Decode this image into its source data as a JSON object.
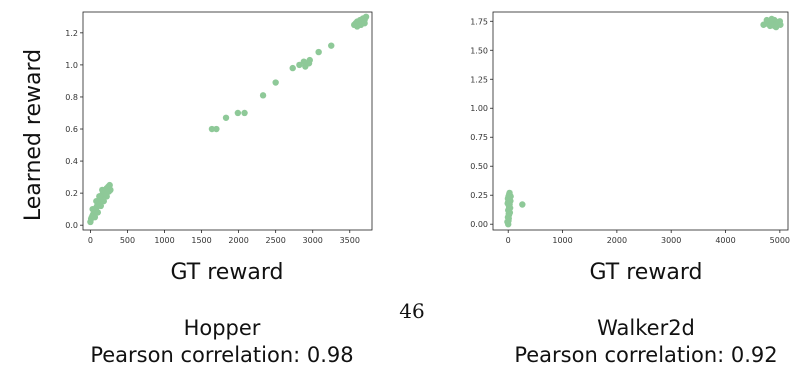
{
  "figure": {
    "shared_ylabel": "Learned reward",
    "page_number": "46"
  },
  "chart_data": [
    {
      "type": "scatter",
      "title": "",
      "xlabel": "GT reward",
      "ylabel": "Learned reward",
      "xlim": [
        -100,
        3800
      ],
      "ylim": [
        -0.03,
        1.33
      ],
      "xticks": [
        "0",
        "500",
        "1000",
        "1500",
        "2000",
        "2500",
        "3000",
        "3500"
      ],
      "yticks": [
        "0.0",
        "0.2",
        "0.4",
        "0.6",
        "0.8",
        "1.0",
        "1.2"
      ],
      "grid": false,
      "point_color": "#8ec998",
      "caption_env": "Hopper",
      "caption_corr": "Pearson correlation: 0.98",
      "points": [
        [
          0,
          0.02
        ],
        [
          10,
          0.04
        ],
        [
          20,
          0.05
        ],
        [
          30,
          0.06
        ],
        [
          40,
          0.07
        ],
        [
          50,
          0.08
        ],
        [
          60,
          0.09
        ],
        [
          70,
          0.1
        ],
        [
          80,
          0.11
        ],
        [
          90,
          0.12
        ],
        [
          100,
          0.13
        ],
        [
          110,
          0.14
        ],
        [
          120,
          0.15
        ],
        [
          130,
          0.16
        ],
        [
          140,
          0.17
        ],
        [
          150,
          0.18
        ],
        [
          160,
          0.19
        ],
        [
          170,
          0.2
        ],
        [
          180,
          0.21
        ],
        [
          200,
          0.22
        ],
        [
          220,
          0.23
        ],
        [
          240,
          0.24
        ],
        [
          260,
          0.25
        ],
        [
          270,
          0.22
        ],
        [
          60,
          0.05
        ],
        [
          100,
          0.08
        ],
        [
          140,
          0.12
        ],
        [
          180,
          0.15
        ],
        [
          220,
          0.18
        ],
        [
          30,
          0.1
        ],
        [
          80,
          0.15
        ],
        [
          120,
          0.18
        ],
        [
          160,
          0.22
        ],
        [
          200,
          0.2
        ],
        [
          250,
          0.21
        ],
        [
          1640,
          0.6
        ],
        [
          1700,
          0.6
        ],
        [
          1830,
          0.67
        ],
        [
          1990,
          0.7
        ],
        [
          2080,
          0.7
        ],
        [
          2330,
          0.81
        ],
        [
          2500,
          0.89
        ],
        [
          2730,
          0.98
        ],
        [
          2820,
          1.0
        ],
        [
          2880,
          1.02
        ],
        [
          2900,
          0.99
        ],
        [
          2950,
          1.01
        ],
        [
          2960,
          1.03
        ],
        [
          3080,
          1.08
        ],
        [
          3250,
          1.12
        ],
        [
          3560,
          1.25
        ],
        [
          3580,
          1.26
        ],
        [
          3600,
          1.27
        ],
        [
          3620,
          1.26
        ],
        [
          3640,
          1.28
        ],
        [
          3660,
          1.27
        ],
        [
          3680,
          1.29
        ],
        [
          3700,
          1.28
        ],
        [
          3720,
          1.3
        ],
        [
          3600,
          1.24
        ],
        [
          3650,
          1.25
        ],
        [
          3700,
          1.26
        ]
      ]
    },
    {
      "type": "scatter",
      "title": "",
      "xlabel": "GT reward",
      "ylabel": "",
      "xlim": [
        -280,
        5150
      ],
      "ylim": [
        -0.05,
        1.83
      ],
      "xticks": [
        "0",
        "1000",
        "2000",
        "3000",
        "4000",
        "5000"
      ],
      "yticks": [
        "0.00",
        "0.25",
        "0.50",
        "0.75",
        "1.00",
        "1.25",
        "1.50",
        "1.75"
      ],
      "grid": false,
      "point_color": "#8ec998",
      "caption_env": "Walker2d",
      "caption_corr": "Pearson correlation: 0.92",
      "points": [
        [
          0,
          0.0
        ],
        [
          5,
          0.03
        ],
        [
          -5,
          0.06
        ],
        [
          10,
          0.09
        ],
        [
          0,
          0.12
        ],
        [
          15,
          0.15
        ],
        [
          -10,
          0.18
        ],
        [
          20,
          0.21
        ],
        [
          5,
          0.24
        ],
        [
          25,
          0.27
        ],
        [
          40,
          0.2
        ],
        [
          30,
          0.1
        ],
        [
          -15,
          0.02
        ],
        [
          35,
          0.14
        ],
        [
          10,
          0.05
        ],
        [
          20,
          0.26
        ],
        [
          -5,
          0.22
        ],
        [
          15,
          0.08
        ],
        [
          25,
          0.17
        ],
        [
          45,
          0.24
        ],
        [
          0,
          0.19
        ],
        [
          260,
          0.17
        ],
        [
          4700,
          1.72
        ],
        [
          4750,
          1.73
        ],
        [
          4800,
          1.75
        ],
        [
          4850,
          1.74
        ],
        [
          4900,
          1.76
        ],
        [
          4950,
          1.73
        ],
        [
          5000,
          1.75
        ],
        [
          4820,
          1.71
        ],
        [
          4880,
          1.72
        ],
        [
          4930,
          1.7
        ],
        [
          4980,
          1.74
        ],
        [
          4760,
          1.76
        ],
        [
          4900,
          1.71
        ],
        [
          4850,
          1.77
        ],
        [
          5010,
          1.72
        ]
      ]
    }
  ]
}
